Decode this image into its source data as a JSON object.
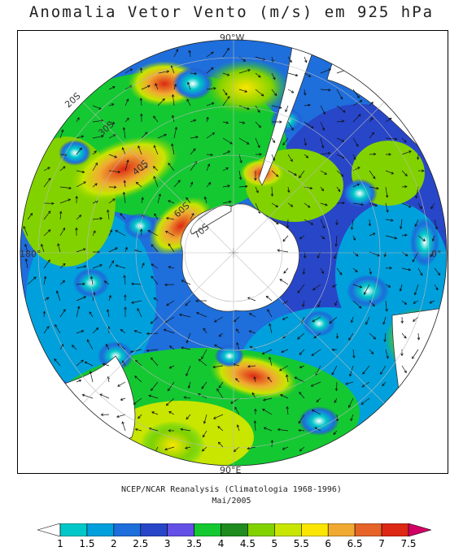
{
  "title": "Anomalia Vetor Vento (m/s) em 925 hPa",
  "caption": {
    "line1": "NCEP/NCAR Reanalysis (Climatologia 1968-1996)",
    "line2": "Mai/2005"
  },
  "map": {
    "projection": "polar stereographic, south pole",
    "longitude_labels": {
      "top": "90°W",
      "bottom": "90°E",
      "left": "180°",
      "right": "0°"
    },
    "latitude_labels": [
      "20S",
      "30S",
      "40S",
      "60S",
      "70S"
    ]
  },
  "colorbar": {
    "ticks": [
      "1",
      "1.5",
      "2",
      "2.5",
      "3",
      "3.5",
      "4",
      "4.5",
      "5",
      "5.5",
      "6",
      "6.5",
      "7",
      "7.5"
    ],
    "colors": [
      "#ffffff",
      "#00c8c8",
      "#00a0dc",
      "#1e6edc",
      "#2846c8",
      "#6450e6",
      "#14c832",
      "#1e8c1e",
      "#82d200",
      "#c8e600",
      "#fae600",
      "#f0aa32",
      "#e66428",
      "#dc2814",
      "#d20064"
    ],
    "units": "m/s"
  }
}
